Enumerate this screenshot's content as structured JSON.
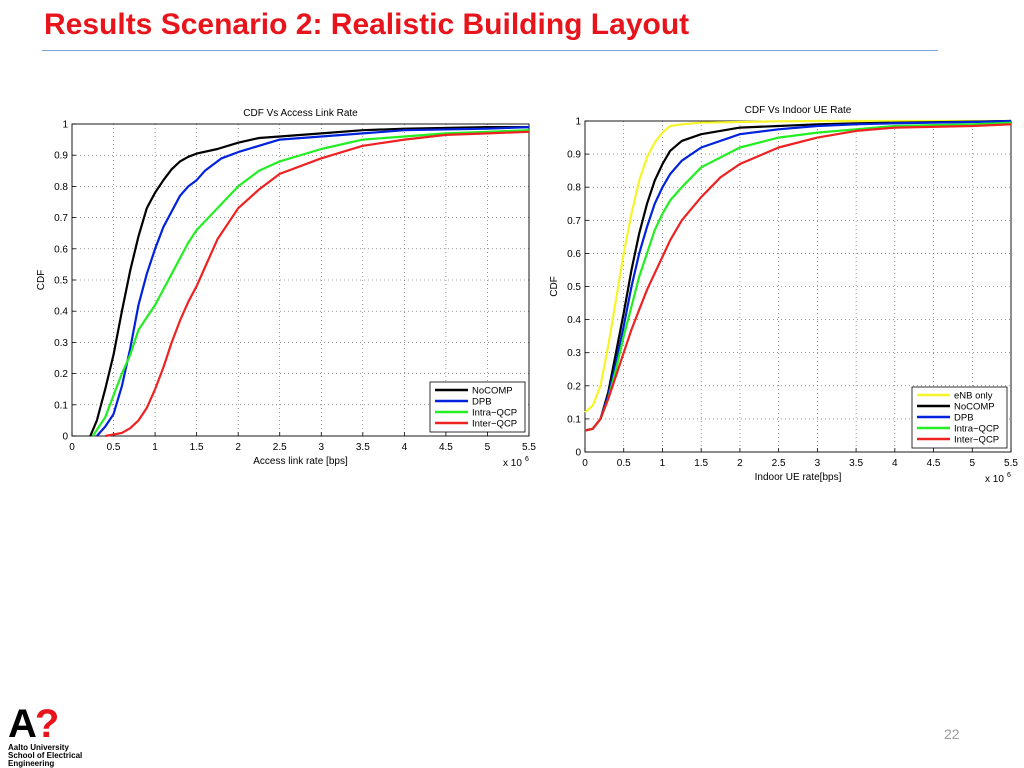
{
  "slide": {
    "title": "Results Scenario 2: Realistic Building Layout",
    "page_number": "22",
    "accent_color": "#e8141c",
    "logo": {
      "mark_letter": "A",
      "mark_symbol": "?",
      "line1": "Aalto University",
      "line2": "School of Electrical",
      "line3": "Engineering"
    }
  },
  "chart_data": [
    {
      "type": "line",
      "title": "CDF Vs Access Link Rate",
      "xlabel": "Access link rate [bps]",
      "ylabel": "CDF",
      "x_multiplier": "x 10",
      "x_multiplier_exp": "6",
      "xlim": [
        0,
        5.5
      ],
      "ylim": [
        0,
        1
      ],
      "x_ticks": [
        "0",
        "0.5",
        "1",
        "1.5",
        "2",
        "2.5",
        "3",
        "3.5",
        "4",
        "4.5",
        "5",
        "5.5"
      ],
      "y_ticks": [
        "0",
        "0.1",
        "0.2",
        "0.3",
        "0.4",
        "0.5",
        "0.6",
        "0.7",
        "0.8",
        "0.9",
        "1"
      ],
      "grid": true,
      "legend_position": "bottom-right",
      "series": [
        {
          "name": "NoCOMP",
          "color": "#000000",
          "x": [
            0.22,
            0.3,
            0.4,
            0.5,
            0.6,
            0.7,
            0.8,
            0.9,
            1.0,
            1.1,
            1.2,
            1.3,
            1.4,
            1.5,
            1.75,
            2.0,
            2.25,
            2.5,
            3.0,
            3.5,
            4.0,
            5.0,
            5.5
          ],
          "y": [
            0.0,
            0.05,
            0.15,
            0.26,
            0.4,
            0.53,
            0.64,
            0.73,
            0.78,
            0.82,
            0.855,
            0.88,
            0.895,
            0.905,
            0.92,
            0.94,
            0.955,
            0.96,
            0.97,
            0.98,
            0.985,
            0.99,
            0.99
          ]
        },
        {
          "name": "DPB",
          "color": "#0022dd",
          "x": [
            0.3,
            0.4,
            0.5,
            0.6,
            0.7,
            0.8,
            0.9,
            1.0,
            1.1,
            1.2,
            1.3,
            1.4,
            1.5,
            1.6,
            1.8,
            2.0,
            2.25,
            2.5,
            3.0,
            3.5,
            4.0,
            5.0,
            5.5
          ],
          "y": [
            0.0,
            0.03,
            0.07,
            0.16,
            0.28,
            0.42,
            0.52,
            0.6,
            0.67,
            0.72,
            0.77,
            0.8,
            0.82,
            0.85,
            0.89,
            0.91,
            0.93,
            0.95,
            0.96,
            0.97,
            0.98,
            0.985,
            0.99
          ]
        },
        {
          "name": "Intra−QCP",
          "color": "#22ee22",
          "x": [
            0.25,
            0.4,
            0.5,
            0.6,
            0.7,
            0.8,
            0.9,
            1.0,
            1.1,
            1.2,
            1.3,
            1.4,
            1.5,
            1.75,
            2.0,
            2.25,
            2.5,
            3.0,
            3.5,
            4.0,
            4.5,
            5.0,
            5.5
          ],
          "y": [
            0.0,
            0.06,
            0.13,
            0.2,
            0.26,
            0.34,
            0.38,
            0.42,
            0.47,
            0.52,
            0.57,
            0.62,
            0.66,
            0.73,
            0.8,
            0.85,
            0.88,
            0.92,
            0.95,
            0.96,
            0.97,
            0.975,
            0.98
          ]
        },
        {
          "name": "Inter−QCP",
          "color": "#ee2222",
          "x": [
            0.4,
            0.6,
            0.7,
            0.8,
            0.9,
            1.0,
            1.1,
            1.2,
            1.3,
            1.4,
            1.5,
            1.6,
            1.75,
            2.0,
            2.25,
            2.5,
            3.0,
            3.5,
            4.0,
            4.5,
            5.0,
            5.5
          ],
          "y": [
            0.0,
            0.01,
            0.025,
            0.05,
            0.09,
            0.15,
            0.22,
            0.3,
            0.37,
            0.43,
            0.48,
            0.54,
            0.63,
            0.73,
            0.79,
            0.84,
            0.89,
            0.93,
            0.95,
            0.965,
            0.97,
            0.975
          ]
        }
      ]
    },
    {
      "type": "line",
      "title": "CDF Vs Indoor UE Rate",
      "xlabel": "Indoor UE rate[bps]",
      "ylabel": "CDF",
      "x_multiplier": "x 10",
      "x_multiplier_exp": "6",
      "xlim": [
        0,
        5.5
      ],
      "ylim": [
        0,
        1
      ],
      "x_ticks": [
        "0",
        "0.5",
        "1",
        "1.5",
        "2",
        "2.5",
        "3",
        "3.5",
        "4",
        "4.5",
        "5",
        "5.5"
      ],
      "y_ticks": [
        "0",
        "0.1",
        "0.2",
        "0.3",
        "0.4",
        "0.5",
        "0.6",
        "0.7",
        "0.8",
        "0.9",
        "1"
      ],
      "grid": true,
      "legend_position": "bottom-right",
      "series": [
        {
          "name": "eNB only",
          "color": "#f5f52a",
          "x": [
            0.0,
            0.1,
            0.2,
            0.3,
            0.4,
            0.5,
            0.6,
            0.7,
            0.8,
            0.9,
            1.0,
            1.1,
            1.25,
            1.5,
            2.0,
            2.5,
            3.0,
            4.0,
            5.0,
            5.5
          ],
          "y": [
            0.12,
            0.14,
            0.2,
            0.32,
            0.46,
            0.6,
            0.72,
            0.82,
            0.89,
            0.935,
            0.965,
            0.985,
            0.99,
            0.995,
            0.997,
            0.999,
            1.0,
            1.0,
            1.0,
            1.0
          ]
        },
        {
          "name": "NoCOMP",
          "color": "#000000",
          "x": [
            0.0,
            0.1,
            0.2,
            0.3,
            0.4,
            0.5,
            0.6,
            0.7,
            0.8,
            0.9,
            1.0,
            1.1,
            1.25,
            1.5,
            2.0,
            2.5,
            3.0,
            3.5,
            4.0,
            5.0,
            5.5
          ],
          "y": [
            0.065,
            0.07,
            0.1,
            0.18,
            0.3,
            0.42,
            0.55,
            0.66,
            0.75,
            0.82,
            0.87,
            0.91,
            0.94,
            0.96,
            0.98,
            0.985,
            0.99,
            0.993,
            0.995,
            0.998,
            1.0
          ]
        },
        {
          "name": "DPB",
          "color": "#0022dd",
          "x": [
            0.0,
            0.1,
            0.2,
            0.3,
            0.4,
            0.5,
            0.6,
            0.7,
            0.8,
            0.9,
            1.0,
            1.1,
            1.25,
            1.5,
            2.0,
            2.5,
            3.0,
            3.5,
            4.0,
            5.0,
            5.5
          ],
          "y": [
            0.065,
            0.07,
            0.1,
            0.17,
            0.27,
            0.38,
            0.5,
            0.6,
            0.68,
            0.75,
            0.8,
            0.84,
            0.88,
            0.92,
            0.96,
            0.975,
            0.985,
            0.99,
            0.993,
            0.997,
            1.0
          ]
        },
        {
          "name": "Intra−QCP",
          "color": "#22ee22",
          "x": [
            0.0,
            0.1,
            0.2,
            0.3,
            0.4,
            0.5,
            0.6,
            0.7,
            0.8,
            0.9,
            1.0,
            1.1,
            1.25,
            1.5,
            2.0,
            2.5,
            3.0,
            3.5,
            4.0,
            5.0,
            5.5
          ],
          "y": [
            0.065,
            0.07,
            0.1,
            0.16,
            0.25,
            0.35,
            0.44,
            0.53,
            0.6,
            0.67,
            0.72,
            0.76,
            0.8,
            0.86,
            0.92,
            0.95,
            0.965,
            0.975,
            0.985,
            0.99,
            0.995
          ]
        },
        {
          "name": "Inter−QCP",
          "color": "#ee2222",
          "x": [
            0.0,
            0.1,
            0.2,
            0.3,
            0.4,
            0.5,
            0.6,
            0.7,
            0.8,
            0.9,
            1.0,
            1.1,
            1.25,
            1.5,
            1.75,
            2.0,
            2.5,
            3.0,
            3.5,
            4.0,
            5.0,
            5.5
          ],
          "y": [
            0.065,
            0.07,
            0.1,
            0.16,
            0.23,
            0.3,
            0.37,
            0.43,
            0.49,
            0.54,
            0.59,
            0.64,
            0.7,
            0.77,
            0.83,
            0.87,
            0.92,
            0.95,
            0.97,
            0.98,
            0.985,
            0.99
          ]
        }
      ]
    }
  ]
}
